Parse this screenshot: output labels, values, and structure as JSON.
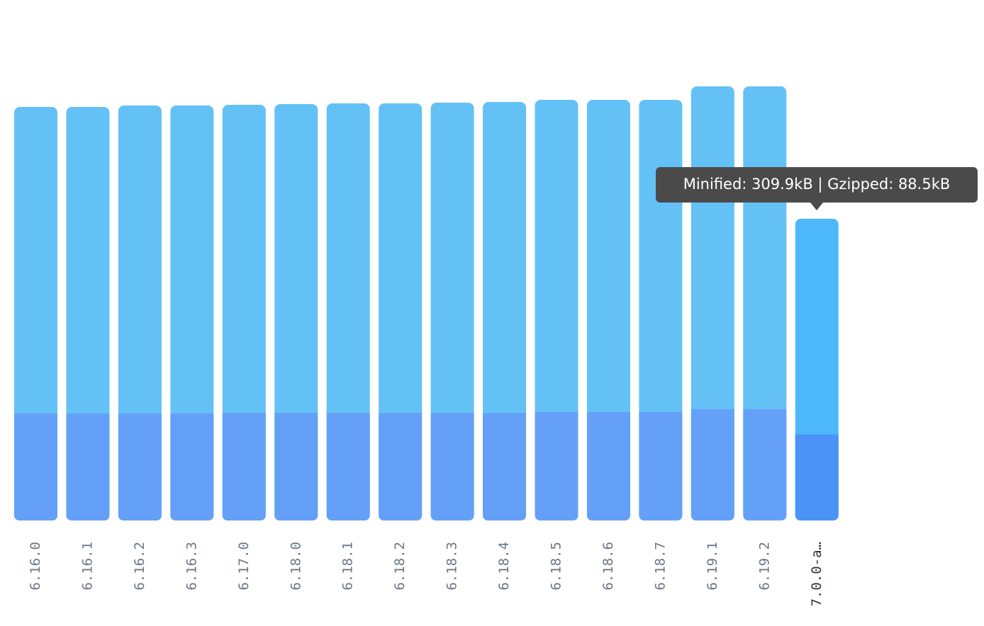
{
  "chart_data": {
    "type": "bar",
    "categories": [
      "6.16.0",
      "6.16.1",
      "6.16.2",
      "6.16.3",
      "6.17.0",
      "6.18.0",
      "6.18.1",
      "6.18.2",
      "6.18.3",
      "6.18.4",
      "6.18.5",
      "6.18.6",
      "6.18.7",
      "6.19.1",
      "6.19.2",
      "7.0.0-a…"
    ],
    "series": [
      {
        "name": "Minified",
        "color": "#63c1f6",
        "highlight_color": "#4db8f9",
        "values": [
          424.7,
          424.7,
          426.2,
          426.2,
          426.9,
          427.6,
          428.4,
          428.4,
          429.1,
          429.8,
          432,
          432,
          432,
          445.8,
          445.8,
          309.9
        ]
      },
      {
        "name": "Gzipped",
        "color": "#64a0f8",
        "highlight_color": "#4c93f8",
        "values": [
          109.8,
          109.8,
          109.8,
          109.8,
          110.5,
          110.5,
          110.5,
          110.5,
          110.5,
          110.5,
          111.3,
          111.3,
          111.3,
          114.2,
          114.2,
          88.5
        ]
      }
    ],
    "highlight_index": 15,
    "tooltip": "Minified: 309.9kB | Gzipped: 88.5kB"
  }
}
